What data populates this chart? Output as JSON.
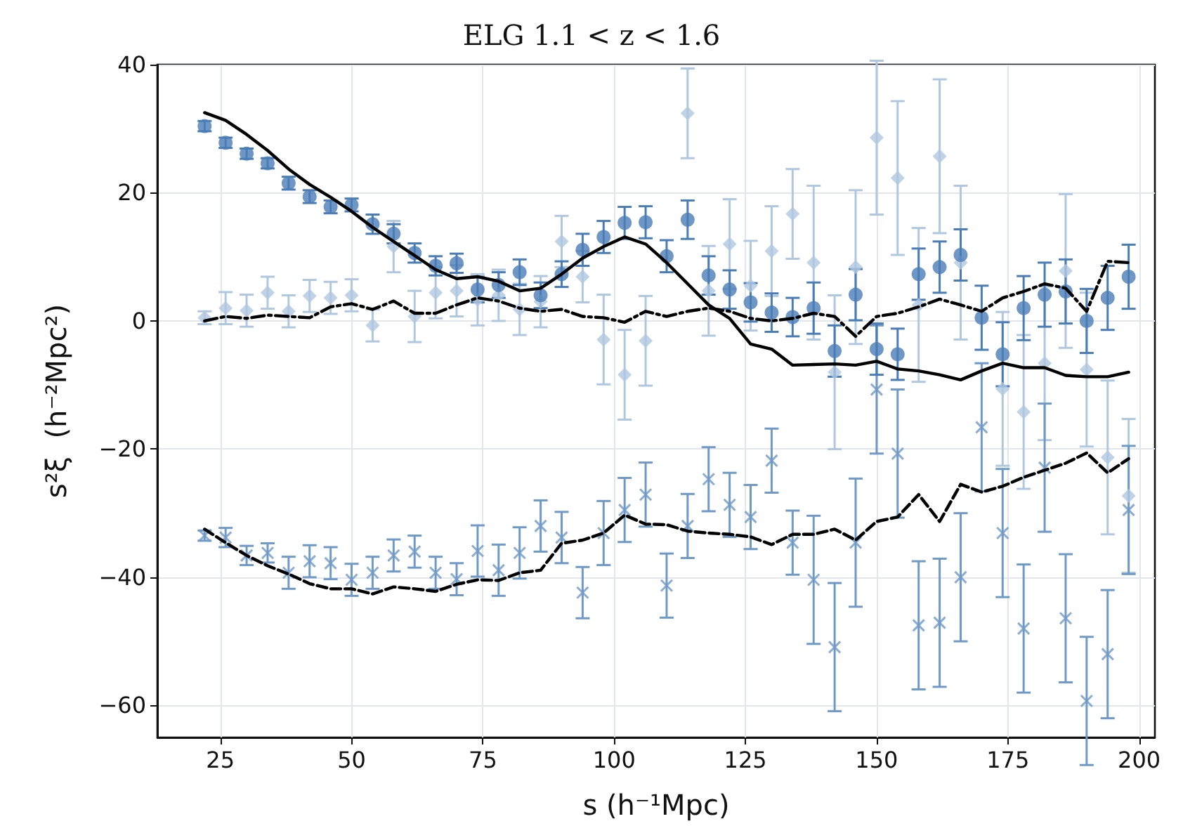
{
  "chart_data": {
    "type": "scatter",
    "title": "ELG 1.1 < z < 1.6",
    "xlabel": "s (h⁻¹Mpc)",
    "ylabel": "s²ξ  (h⁻²Mpc²)",
    "xlim": [
      13,
      203
    ],
    "ylim": [
      -65,
      40
    ],
    "xticks": [
      25,
      50,
      75,
      100,
      125,
      150,
      175,
      200
    ],
    "yticks": [
      -60,
      -40,
      -20,
      0,
      20,
      40
    ],
    "grid": true,
    "x": [
      22,
      26,
      30,
      34,
      38,
      42,
      46,
      50,
      54,
      58,
      62,
      66,
      70,
      74,
      78,
      82,
      86,
      90,
      94,
      98,
      102,
      106,
      110,
      114,
      118,
      122,
      126,
      130,
      134,
      138,
      142,
      146,
      150,
      154,
      158,
      162,
      166,
      170,
      174,
      178,
      182,
      186,
      190,
      194,
      198
    ],
    "series": [
      {
        "marker": "diamond",
        "color": "#b0c7e0",
        "values": [
          0.5,
          2.0,
          1.6,
          4.4,
          1.5,
          3.9,
          3.6,
          4.0,
          -0.7,
          11.6,
          0.7,
          4.4,
          4.7,
          3.3,
          4.0,
          1.8,
          3.0,
          12.4,
          6.9,
          -2.9,
          -8.4,
          -3.1,
          null,
          32.4,
          4.7,
          12.0,
          5.5,
          10.9,
          16.7,
          9.1,
          -8.0,
          8.4,
          28.6,
          22.3,
          2.5,
          25.7,
          9.1,
          null,
          -10.6,
          -14.2,
          -6.6,
          7.8,
          -7.6,
          -21.3,
          -27.3
        ],
        "errors": [
          1,
          2.5,
          2.5,
          2.5,
          2.5,
          2.5,
          2.5,
          2.5,
          2.5,
          4,
          4,
          4,
          4,
          4,
          4,
          4,
          4,
          4,
          4,
          7,
          7,
          7,
          null,
          7,
          7,
          7,
          7,
          7,
          7,
          12,
          12,
          12,
          12,
          12,
          12,
          12,
          12,
          null,
          12,
          12,
          12,
          12,
          12,
          12,
          12
        ]
      },
      {
        "marker": "cross",
        "color": "#6f99c6",
        "values": [
          -33.5,
          -33.8,
          -36.6,
          -36.2,
          -39.3,
          -37.5,
          -37.8,
          -40.4,
          -39.3,
          -36.6,
          -36.0,
          -39.3,
          -40.3,
          -35.9,
          -38.9,
          -36.2,
          -32.0,
          -33.8,
          -42.4,
          -33.1,
          -29.5,
          -27.1,
          -41.3,
          -32.0,
          -24.7,
          -28.7,
          -30.6,
          -21.8,
          -34.6,
          -40.4,
          -50.9,
          -34.6,
          -10.7,
          -20.7,
          -47.5,
          -47.1,
          -40.0,
          -16.6,
          -33.1,
          -48.0,
          -22.9,
          -46.4,
          -59.3,
          -52.0,
          -29.5
        ],
        "errors": [
          0.8,
          1.5,
          1.5,
          1.5,
          2.5,
          2.5,
          2.5,
          2.5,
          2.5,
          2.5,
          2.5,
          2.5,
          2.5,
          4,
          4,
          4,
          4,
          4,
          4,
          5,
          5,
          5,
          5,
          5,
          5,
          5,
          5,
          5,
          5,
          10,
          10,
          10,
          10,
          10,
          10,
          10,
          10,
          10,
          10,
          10,
          10,
          10,
          10,
          10,
          10
        ]
      },
      {
        "marker": "circle",
        "color": "#4a7db6",
        "values": [
          30.4,
          27.8,
          26.1,
          24.6,
          21.5,
          19.4,
          17.8,
          18.1,
          15.1,
          13.6,
          10.6,
          8.6,
          9.0,
          4.9,
          5.6,
          7.6,
          4.0,
          7.3,
          11.1,
          13.1,
          15.3,
          15.4,
          10.1,
          15.8,
          7.1,
          4.9,
          2.9,
          1.3,
          0.6,
          2.0,
          -4.7,
          4.1,
          -4.4,
          -5.2,
          7.3,
          8.4,
          10.3,
          0.5,
          -5.2,
          2.0,
          4.1,
          4.6,
          0,
          3.6,
          6.9
        ],
        "errors": [
          0.8,
          0.8,
          0.8,
          0.8,
          1,
          1,
          1,
          1,
          1.5,
          1.5,
          1.5,
          1.5,
          1.5,
          2,
          2,
          2,
          2,
          2,
          2.5,
          2.5,
          2.5,
          2.5,
          2.5,
          3,
          3,
          3,
          3,
          3,
          3,
          4,
          4,
          4,
          4,
          4,
          4,
          4,
          4,
          5,
          5,
          5,
          5,
          5,
          5,
          5,
          5
        ]
      },
      {
        "type": "line",
        "line_style": "solid",
        "color": "#000000",
        "values": [
          32.5,
          31.3,
          29.1,
          26.6,
          23.7,
          21.3,
          19.3,
          17.1,
          14.6,
          12.4,
          10.2,
          8.0,
          6.6,
          6.9,
          6.2,
          4.7,
          5.1,
          7.3,
          9.8,
          11.6,
          13.1,
          12.0,
          9.1,
          5.8,
          2.5,
          0.4,
          -3.6,
          -4.4,
          -6.9,
          -6.8,
          -6.7,
          -6.9,
          -6.3,
          -7.5,
          -7.8,
          -8.4,
          -9.2,
          -7.8,
          -6.6,
          -7.3,
          -7.3,
          -8.5,
          -8.7,
          -8.7,
          -8.0
        ]
      },
      {
        "type": "line",
        "line_style": "dashed",
        "color": "#000000",
        "values": [
          -32.5,
          -34.6,
          -36.6,
          -38.2,
          -39.5,
          -41.0,
          -41.8,
          -41.8,
          -42.6,
          -41.5,
          -41.8,
          -42.2,
          -41.1,
          -40.4,
          -40.5,
          -39.3,
          -38.9,
          -34.7,
          -34.2,
          -33.1,
          -30.3,
          -31.7,
          -31.8,
          -32.8,
          -33.1,
          -33.3,
          -33.7,
          -34.9,
          -33.3,
          -33.3,
          -32.5,
          -34.2,
          -31.3,
          -30.6,
          -27.1,
          -31.3,
          -25.5,
          -26.7,
          -25.8,
          -24.4,
          -23.3,
          -22.2,
          -20.6,
          -23.7,
          -21.5
        ]
      },
      {
        "type": "line",
        "line_style": "dashdot",
        "color": "#000000",
        "values": [
          0,
          0.7,
          0.4,
          0.9,
          0.7,
          0.5,
          2.2,
          2.7,
          1.8,
          3.1,
          1.2,
          1.2,
          2.5,
          3.6,
          3.1,
          2.0,
          1.5,
          1.8,
          0.7,
          0.5,
          -0.2,
          1.5,
          0.7,
          1.5,
          2.0,
          1.5,
          0.4,
          0,
          0.4,
          1.2,
          0.7,
          -2.4,
          0.7,
          1.2,
          2.2,
          3.4,
          2.5,
          1.5,
          3.6,
          4.6,
          5.8,
          5.1,
          1.5,
          9.3,
          9.1
        ]
      }
    ]
  }
}
